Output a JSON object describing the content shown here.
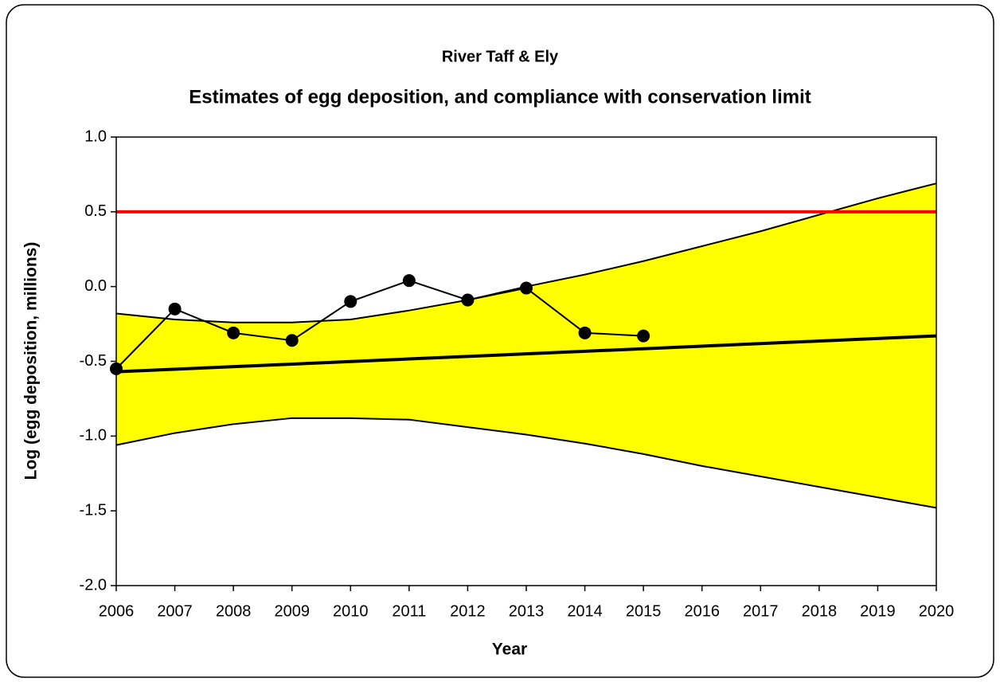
{
  "chart_data": {
    "type": "line",
    "title": "River Taff & Ely",
    "subtitle": "Estimates of egg deposition, and compliance with conservation limit",
    "x_label": "Year",
    "y_label": "Log (egg deposition, millions)",
    "xlim": [
      2006,
      2020
    ],
    "xticks": [
      2006,
      2007,
      2008,
      2009,
      2010,
      2011,
      2012,
      2013,
      2014,
      2015,
      2016,
      2017,
      2018,
      2019,
      2020
    ],
    "ylim": [
      -2,
      1
    ],
    "yticks": [
      {
        "value": 1,
        "label": "1.0"
      },
      {
        "value": 0.5,
        "label": "0.5"
      },
      {
        "value": 0,
        "label": "0.0"
      },
      {
        "value": -0.5,
        "label": "-0.5"
      },
      {
        "value": -1,
        "label": "-1.0"
      },
      {
        "value": -1.5,
        "label": "-1.5"
      },
      {
        "value": -2,
        "label": "-2.0"
      }
    ],
    "band": {
      "color": "#ffff00",
      "x": [
        2006,
        2007,
        2008,
        2009,
        2010,
        2011,
        2012,
        2013,
        2014,
        2015,
        2016,
        2017,
        2018,
        2019,
        2020
      ],
      "upper": [
        -0.18,
        -0.22,
        -0.24,
        -0.24,
        -0.22,
        -0.16,
        -0.09,
        0.0,
        0.08,
        0.17,
        0.27,
        0.37,
        0.48,
        0.59,
        0.69
      ],
      "lower": [
        -1.06,
        -0.98,
        -0.92,
        -0.88,
        -0.88,
        -0.89,
        -0.94,
        -0.99,
        -1.05,
        -1.12,
        -1.2,
        -1.27,
        -1.34,
        -1.41,
        -1.48
      ]
    },
    "trend": {
      "color": "#000000",
      "x": [
        2006,
        2020
      ],
      "values": [
        -0.57,
        -0.33
      ]
    },
    "limit": {
      "color": "#ff0000",
      "value": 0.5
    },
    "observed": {
      "color": "#000000",
      "x": [
        2006,
        2007,
        2008,
        2009,
        2010,
        2011,
        2012,
        2013,
        2014,
        2015
      ],
      "values": [
        -0.55,
        -0.15,
        -0.31,
        -0.36,
        -0.1,
        0.04,
        -0.09,
        -0.01,
        -0.31,
        -0.33
      ]
    }
  }
}
